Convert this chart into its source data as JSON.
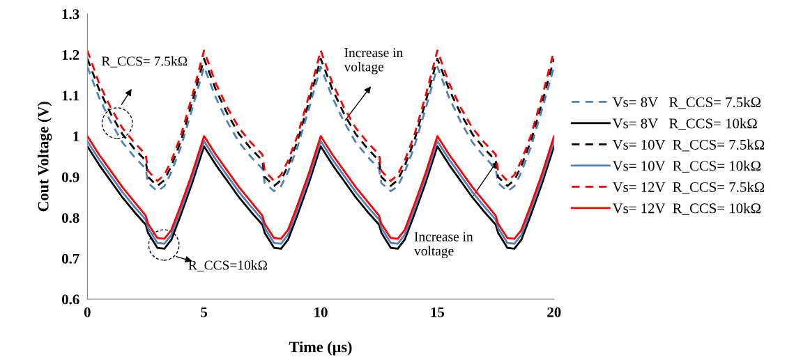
{
  "chart_data": {
    "type": "line",
    "xlabel": "Time (µs)",
    "ylabel": "Cout Voltage (V)",
    "x": [
      0,
      0.5,
      1,
      1.5,
      2,
      2.5,
      2.6,
      3,
      3.3,
      3.6,
      4,
      4.5,
      5,
      5.5,
      6,
      6.5,
      7,
      7.5,
      7.6,
      8,
      8.3,
      8.6,
      9,
      9.5,
      10,
      10.5,
      11,
      11.5,
      12,
      12.5,
      12.6,
      13,
      13.3,
      13.6,
      14,
      14.5,
      15,
      15.5,
      16,
      16.5,
      17,
      17.5,
      17.6,
      18,
      18.3,
      18.6,
      19,
      19.5,
      20
    ],
    "xlim": [
      0,
      20
    ],
    "xticks": [
      0,
      5,
      10,
      15,
      20
    ],
    "ylim": [
      0.6,
      1.3
    ],
    "yticks": [
      0.6,
      0.7,
      0.8,
      0.9,
      1,
      1.1,
      1.2,
      1.3
    ],
    "grid": false,
    "legend": "right",
    "marker": "none",
    "series": [
      {
        "name": "Vs= 8V   R_CCS= 7.5kΩ",
        "color": "#4f81bd",
        "line_style": "dashed",
        "values": [
          1.17,
          1.095,
          1.035,
          0.985,
          0.95,
          0.92,
          0.885,
          0.865,
          0.877,
          0.912,
          0.972,
          1.068,
          1.17,
          1.095,
          1.035,
          0.985,
          0.95,
          0.92,
          0.885,
          0.865,
          0.877,
          0.912,
          0.972,
          1.068,
          1.17,
          1.095,
          1.035,
          0.985,
          0.95,
          0.92,
          0.885,
          0.865,
          0.877,
          0.912,
          0.972,
          1.068,
          1.17,
          1.095,
          1.035,
          0.985,
          0.95,
          0.92,
          0.885,
          0.865,
          0.877,
          0.912,
          0.972,
          1.068,
          1.17
        ]
      },
      {
        "name": "Vs= 8V   R_CCS= 10kΩ",
        "color": "#000000",
        "line_style": "solid",
        "values": [
          0.975,
          0.93,
          0.89,
          0.85,
          0.815,
          0.783,
          0.763,
          0.726,
          0.724,
          0.746,
          0.806,
          0.886,
          0.975,
          0.93,
          0.89,
          0.85,
          0.815,
          0.783,
          0.763,
          0.726,
          0.724,
          0.746,
          0.806,
          0.886,
          0.975,
          0.93,
          0.89,
          0.85,
          0.815,
          0.783,
          0.763,
          0.726,
          0.724,
          0.746,
          0.806,
          0.886,
          0.975,
          0.93,
          0.89,
          0.85,
          0.815,
          0.783,
          0.763,
          0.726,
          0.724,
          0.746,
          0.806,
          0.886,
          0.975
        ]
      },
      {
        "name": "Vs= 10V  R_CCS= 7.5kΩ",
        "color": "#000000",
        "line_style": "dashed",
        "values": [
          1.19,
          1.115,
          1.055,
          1.005,
          0.97,
          0.94,
          0.9,
          0.878,
          0.892,
          0.927,
          0.987,
          1.085,
          1.19,
          1.115,
          1.055,
          1.005,
          0.97,
          0.94,
          0.9,
          0.878,
          0.892,
          0.927,
          0.987,
          1.085,
          1.19,
          1.115,
          1.055,
          1.005,
          0.97,
          0.94,
          0.9,
          0.878,
          0.892,
          0.927,
          0.987,
          1.085,
          1.19,
          1.115,
          1.055,
          1.005,
          0.97,
          0.94,
          0.9,
          0.878,
          0.892,
          0.927,
          0.987,
          1.085,
          1.19
        ]
      },
      {
        "name": "Vs= 10V  R_CCS= 10kΩ",
        "color": "#4f81bd",
        "line_style": "solid",
        "values": [
          0.988,
          0.943,
          0.903,
          0.863,
          0.828,
          0.795,
          0.775,
          0.738,
          0.736,
          0.758,
          0.818,
          0.898,
          0.988,
          0.943,
          0.903,
          0.863,
          0.828,
          0.795,
          0.775,
          0.738,
          0.736,
          0.758,
          0.818,
          0.898,
          0.988,
          0.943,
          0.903,
          0.863,
          0.828,
          0.795,
          0.775,
          0.738,
          0.736,
          0.758,
          0.818,
          0.898,
          0.988,
          0.943,
          0.903,
          0.863,
          0.828,
          0.795,
          0.775,
          0.738,
          0.736,
          0.758,
          0.818,
          0.898,
          0.988
        ]
      },
      {
        "name": "Vs= 12V  R_CCS= 7.5kΩ",
        "color": "#ff0000",
        "line_style": "dashed",
        "values": [
          1.21,
          1.13,
          1.07,
          1.02,
          0.985,
          0.955,
          0.915,
          0.89,
          0.905,
          0.94,
          1.0,
          1.1,
          1.21,
          1.13,
          1.07,
          1.02,
          0.985,
          0.955,
          0.915,
          0.89,
          0.905,
          0.94,
          1.0,
          1.1,
          1.21,
          1.13,
          1.07,
          1.02,
          0.985,
          0.955,
          0.915,
          0.89,
          0.905,
          0.94,
          1.0,
          1.1,
          1.21,
          1.13,
          1.07,
          1.02,
          0.985,
          0.955,
          0.915,
          0.89,
          0.905,
          0.94,
          1.0,
          1.1,
          1.21
        ]
      },
      {
        "name": "Vs= 12V  R_CCS= 10kΩ",
        "color": "#ff0000",
        "line_style": "solid",
        "values": [
          1.0,
          0.955,
          0.915,
          0.875,
          0.84,
          0.805,
          0.785,
          0.75,
          0.748,
          0.77,
          0.83,
          0.91,
          1.0,
          0.955,
          0.915,
          0.875,
          0.84,
          0.805,
          0.785,
          0.75,
          0.748,
          0.77,
          0.83,
          0.91,
          1.0,
          0.955,
          0.915,
          0.875,
          0.84,
          0.805,
          0.785,
          0.75,
          0.748,
          0.77,
          0.83,
          0.91,
          1.0,
          0.955,
          0.915,
          0.875,
          0.84,
          0.805,
          0.785,
          0.75,
          0.748,
          0.77,
          0.83,
          0.91,
          1.0
        ]
      }
    ],
    "annotations": [
      "R_CCS= 7.5kΩ",
      "R_CCS=10kΩ",
      {
        "text": "Increase in\nvoltage",
        "x": 11,
        "y": 1.035
      },
      {
        "text": "Increase in\nvoltage",
        "x": 16.5,
        "y": 0.85
      }
    ]
  }
}
